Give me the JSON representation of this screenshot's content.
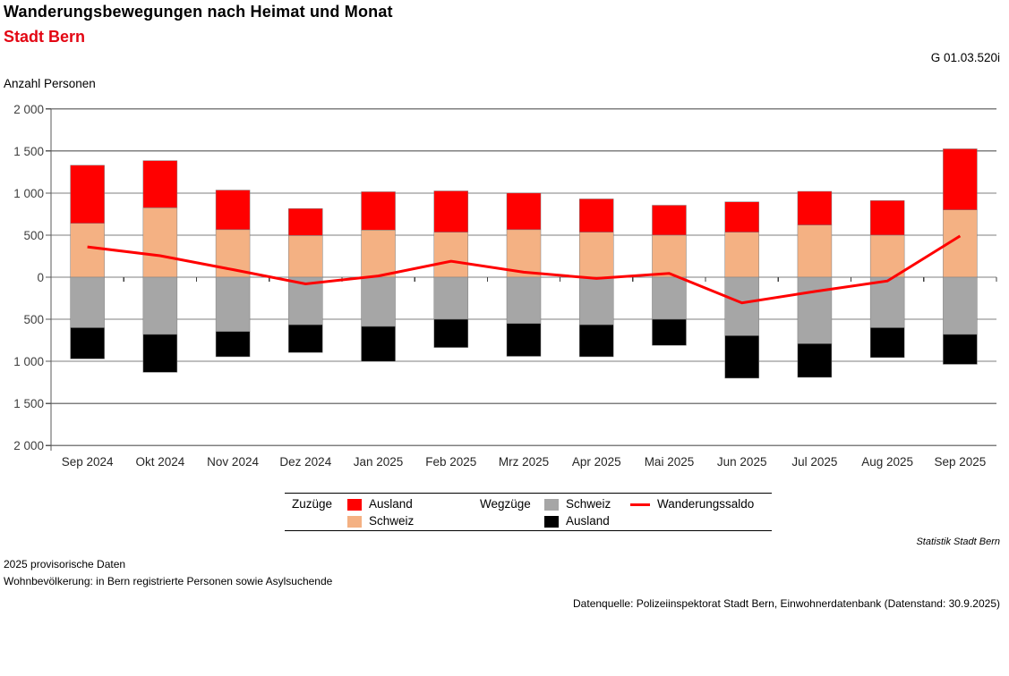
{
  "header": {
    "title": "Wanderungsbewegungen nach Heimat und Monat",
    "subtitle": "Stadt Bern",
    "figure_code": "G 01.03.520i",
    "y_axis_unit_label": "Anzahl Personen"
  },
  "colors": {
    "subtitle_red": "#e30613",
    "zuzuege_ausland": "#ff0000",
    "zuzuege_schweiz": "#f4b183",
    "wegzuege_schweiz": "#a6a6a6",
    "wegzuege_ausland": "#000000",
    "saldo_line": "#ff0000",
    "gridline": "#7f7f7f",
    "axis": "#595959",
    "tick_label": "#404040"
  },
  "chart_data": {
    "type": "bar",
    "subtype": "diverging-stacked-columns-with-line",
    "title": "Wanderungsbewegungen nach Heimat und Monat",
    "subtitle": "Stadt Bern",
    "ylabel": "Anzahl Personen",
    "ylim": [
      -2000,
      2000
    ],
    "grid": true,
    "legend_position": "bottom",
    "categories": [
      "Sep 2024",
      "Okt 2024",
      "Nov 2024",
      "Dez 2024",
      "Jan 2025",
      "Feb 2025",
      "Mrz 2025",
      "Apr 2025",
      "Mai 2025",
      "Jun 2025",
      "Jul 2025",
      "Aug 2025",
      "Sep 2025"
    ],
    "yticks": [
      2000,
      1500,
      1000,
      500,
      0,
      -500,
      -1000,
      -1500,
      -2000
    ],
    "ytick_labels": [
      "2 000",
      "1 500",
      "1 000",
      "500",
      "0",
      "500",
      "1 000",
      "1 500",
      "2 000"
    ],
    "series": [
      {
        "name": "Zuzüge Schweiz",
        "role": "stack-up-base",
        "color": "#f4b183",
        "values": [
          640,
          825,
          565,
          495,
          560,
          535,
          565,
          535,
          500,
          535,
          620,
          500,
          800
        ]
      },
      {
        "name": "Zuzüge Ausland",
        "role": "stack-up-top",
        "color": "#ff0000",
        "values": [
          690,
          560,
          470,
          320,
          455,
          490,
          435,
          395,
          355,
          360,
          400,
          410,
          725
        ]
      },
      {
        "name": "Wegzüge Schweiz",
        "role": "stack-down-base",
        "color": "#a6a6a6",
        "values": [
          -600,
          -680,
          -645,
          -565,
          -585,
          -500,
          -550,
          -565,
          -500,
          -695,
          -790,
          -600,
          -680
        ]
      },
      {
        "name": "Wegzüge Ausland",
        "role": "stack-down-top",
        "color": "#000000",
        "values": [
          -370,
          -450,
          -300,
          -330,
          -415,
          -335,
          -390,
          -380,
          -310,
          -505,
          -400,
          -355,
          -355
        ]
      },
      {
        "name": "Wanderungssaldo",
        "role": "line",
        "color": "#ff0000",
        "values": [
          360,
          255,
          90,
          -80,
          15,
          190,
          60,
          -15,
          45,
          -305,
          -170,
          -45,
          490
        ]
      }
    ]
  },
  "legend": {
    "group1_label": "Zuzüge",
    "group1_items": [
      {
        "label": "Ausland",
        "color": "#ff0000"
      },
      {
        "label": "Schweiz",
        "color": "#f4b183"
      }
    ],
    "group2_label": "Wegzüge",
    "group2_items": [
      {
        "label": "Schweiz",
        "color": "#a6a6a6"
      },
      {
        "label": "Ausland",
        "color": "#000000"
      }
    ],
    "line_item": {
      "label": "Wanderungssaldo",
      "color": "#ff0000"
    }
  },
  "footer": {
    "attribution": "Statistik Stadt Bern",
    "note1": "2025 provisorische Daten",
    "note2": "Wohnbevölkerung: in Bern registrierte Personen sowie Asylsuchende",
    "source": "Datenquelle: Polizeiinspektorat Stadt Bern, Einwohnerdatenbank (Datenstand: 30.9.2025)"
  }
}
